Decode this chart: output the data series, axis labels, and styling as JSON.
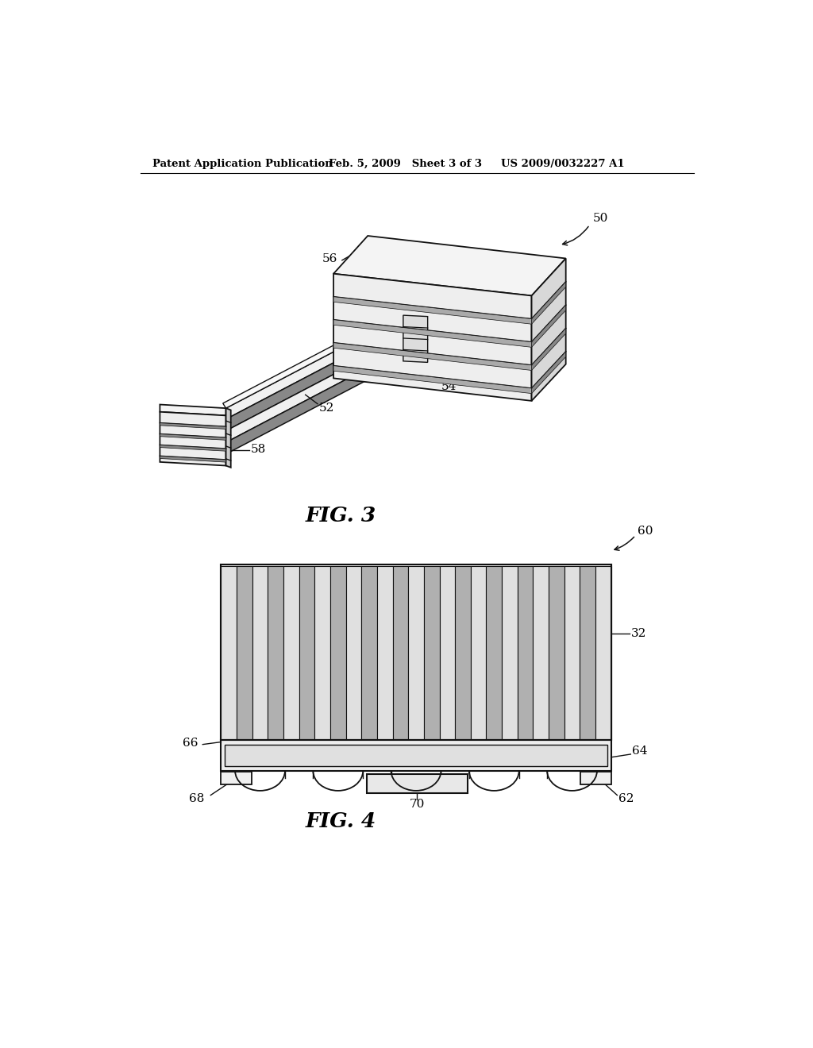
{
  "bg_color": "#ffffff",
  "header_left": "Patent Application Publication",
  "header_center": "Feb. 5, 2009   Sheet 3 of 3",
  "header_right": "US 2009/0032227 A1",
  "fig3_label": "FIG. 3",
  "fig4_label": "FIG. 4",
  "label_50": "50",
  "label_52": "52",
  "label_54": "54",
  "label_56": "56",
  "label_58": "58",
  "label_60": "60",
  "label_32": "32",
  "label_62": "62",
  "label_64": "64",
  "label_66": "66",
  "label_68": "68",
  "label_70": "70"
}
